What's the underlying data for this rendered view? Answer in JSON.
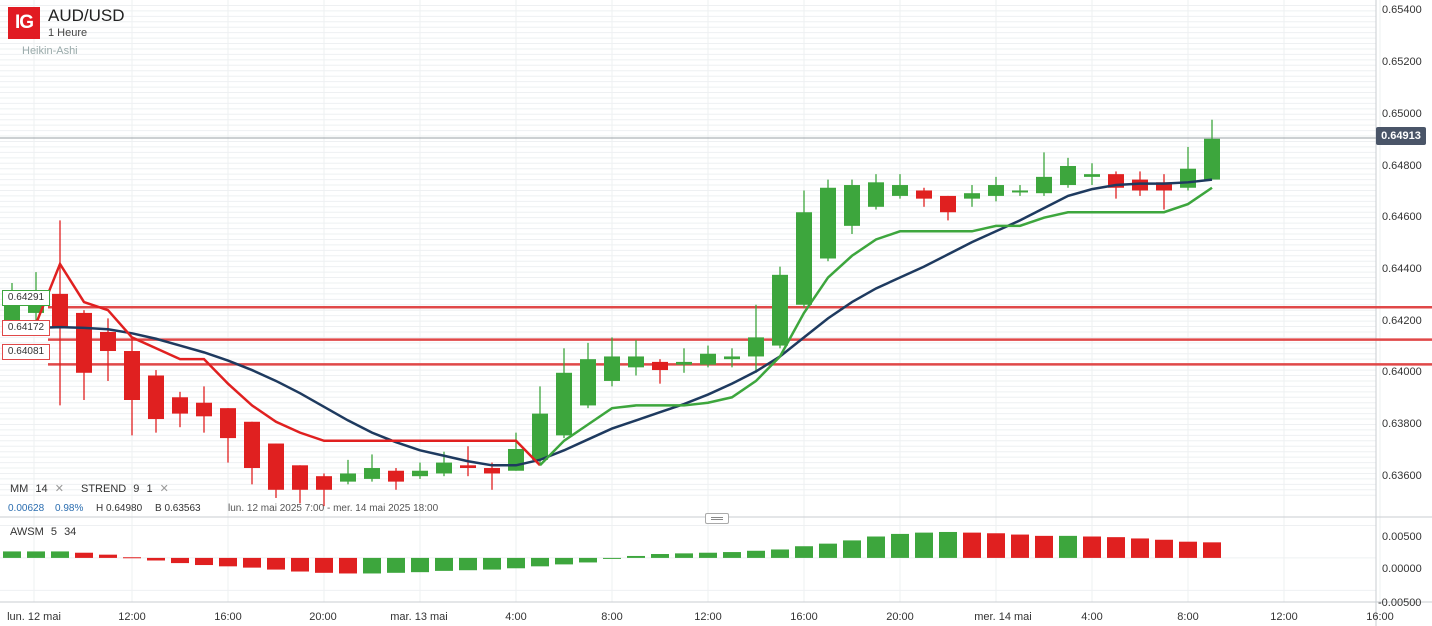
{
  "header": {
    "logo": "IG",
    "symbol": "AUD/USD",
    "timeframe": "1 Heure",
    "chart_type": "Heikin-Ashi"
  },
  "indicators": {
    "mm": {
      "name": "MM",
      "period": "14"
    },
    "strend": {
      "name": "STREND",
      "p1": "9",
      "p2": "1"
    },
    "awsm": {
      "name": "AWSM",
      "p1": "5",
      "p2": "34"
    }
  },
  "stats": {
    "change": "0.00628",
    "change_pct": "0.98%",
    "high": "H 0.64980",
    "low": "B 0.63563",
    "range": "lun. 12 mai 2025 7:00 - mer. 14 mai 2025 18:00"
  },
  "current_price": "0.64913",
  "levels": [
    "0.64291",
    "0.64172",
    "0.64081"
  ],
  "price_axis": [
    "0.65400",
    "0.65200",
    "0.65000",
    "0.64800",
    "0.64600",
    "0.64400",
    "0.64200",
    "0.64000",
    "0.63800",
    "0.63600"
  ],
  "awsm_axis": [
    "0.00500",
    "0.00000",
    "-0.00500"
  ],
  "time_axis": [
    "lun. 12 mai",
    "12:00",
    "16:00",
    "20:00",
    "mar. 13 mai",
    "4:00",
    "8:00",
    "12:00",
    "16:00",
    "20:00",
    "mer. 14 mai",
    "4:00",
    "8:00",
    "12:00",
    "16:00"
  ],
  "colors": {
    "up": "#3da63d",
    "down": "#e02020",
    "ma": "#1e3a5f",
    "level": "#e04848",
    "strend_up": "#3da63d",
    "strend_down": "#e02020"
  },
  "chart_data": {
    "type": "candlestick",
    "title": "AUD/USD",
    "price_ylim": [
      0.6352,
      0.6542
    ],
    "candles": [
      [
        0.6422,
        0.6433,
        0.6438,
        0.6419
      ],
      [
        0.6427,
        0.6434,
        0.6442,
        0.6424
      ],
      [
        0.6434,
        0.6422,
        0.6461,
        0.6393
      ],
      [
        0.6427,
        0.6405,
        0.6428,
        0.6395
      ],
      [
        0.642,
        0.6413,
        0.6425,
        0.6402
      ],
      [
        0.6413,
        0.6395,
        0.6418,
        0.6382
      ],
      [
        0.6404,
        0.6388,
        0.6406,
        0.6383
      ],
      [
        0.6396,
        0.639,
        0.6398,
        0.6385
      ],
      [
        0.6394,
        0.6389,
        0.64,
        0.6383
      ],
      [
        0.6392,
        0.6381,
        0.6392,
        0.6372
      ],
      [
        0.6387,
        0.637,
        0.6387,
        0.6364
      ],
      [
        0.6379,
        0.6362,
        0.6379,
        0.6359
      ],
      [
        0.6371,
        0.6362,
        0.6371,
        0.6357
      ],
      [
        0.6367,
        0.6362,
        0.6368,
        0.6356
      ],
      [
        0.6365,
        0.6368,
        0.6373,
        0.6364
      ],
      [
        0.6366,
        0.637,
        0.6375,
        0.6365
      ],
      [
        0.6369,
        0.6365,
        0.637,
        0.6362
      ],
      [
        0.6367,
        0.6369,
        0.6372,
        0.6366
      ],
      [
        0.6368,
        0.6372,
        0.6376,
        0.6367
      ],
      [
        0.6371,
        0.637,
        0.6378,
        0.6367
      ],
      [
        0.637,
        0.6368,
        0.6372,
        0.6362
      ],
      [
        0.6369,
        0.6377,
        0.6383,
        0.6369
      ],
      [
        0.6373,
        0.639,
        0.64,
        0.6371
      ],
      [
        0.6382,
        0.6405,
        0.6414,
        0.6381
      ],
      [
        0.6393,
        0.641,
        0.6416,
        0.6392
      ],
      [
        0.6402,
        0.6411,
        0.6418,
        0.64
      ],
      [
        0.6407,
        0.6411,
        0.6417,
        0.6404
      ],
      [
        0.6409,
        0.6406,
        0.641,
        0.6401
      ],
      [
        0.6408,
        0.6409,
        0.6414,
        0.6405
      ],
      [
        0.6408,
        0.6412,
        0.6415,
        0.6407
      ],
      [
        0.641,
        0.6411,
        0.6414,
        0.6407
      ],
      [
        0.6411,
        0.6418,
        0.643,
        0.6405
      ],
      [
        0.6415,
        0.6441,
        0.6444,
        0.6414
      ],
      [
        0.643,
        0.6464,
        0.6472,
        0.6429
      ],
      [
        0.6447,
        0.6473,
        0.6476,
        0.6446
      ],
      [
        0.6459,
        0.6474,
        0.6476,
        0.6456
      ],
      [
        0.6466,
        0.6475,
        0.6478,
        0.6465
      ],
      [
        0.647,
        0.6474,
        0.6478,
        0.6469
      ],
      [
        0.6472,
        0.6469,
        0.6473,
        0.6466
      ],
      [
        0.647,
        0.6464,
        0.647,
        0.6461
      ],
      [
        0.6469,
        0.6471,
        0.6474,
        0.6466
      ],
      [
        0.647,
        0.6474,
        0.6477,
        0.6468
      ],
      [
        0.6472,
        0.6472,
        0.6474,
        0.647
      ],
      [
        0.6471,
        0.6477,
        0.6486,
        0.647
      ],
      [
        0.6474,
        0.6481,
        0.6484,
        0.6473
      ],
      [
        0.6477,
        0.6478,
        0.6482,
        0.6474
      ],
      [
        0.6478,
        0.6473,
        0.6479,
        0.6469
      ],
      [
        0.6476,
        0.6472,
        0.6479,
        0.647
      ],
      [
        0.6475,
        0.6472,
        0.6478,
        0.6465
      ],
      [
        0.6473,
        0.648,
        0.6488,
        0.6472
      ],
      [
        0.6476,
        0.6491,
        0.6498,
        0.6476
      ]
    ],
    "ma14": [
      0.6421,
      0.64215,
      0.64218,
      0.64215,
      0.6421,
      0.64195,
      0.64175,
      0.6415,
      0.64125,
      0.64095,
      0.6406,
      0.6402,
      0.63975,
      0.63925,
      0.63875,
      0.6383,
      0.63795,
      0.63765,
      0.63745,
      0.63725,
      0.6371,
      0.6371,
      0.6373,
      0.63765,
      0.63805,
      0.63845,
      0.63875,
      0.63905,
      0.63935,
      0.6397,
      0.6401,
      0.64055,
      0.6411,
      0.6418,
      0.6425,
      0.6431,
      0.6436,
      0.644,
      0.6444,
      0.64485,
      0.6453,
      0.6457,
      0.6461,
      0.64655,
      0.647,
      0.64725,
      0.6474,
      0.64745,
      0.64745,
      0.6475,
      0.6476
    ],
    "strend": [
      0.642,
      0.6423,
      0.6445,
      0.6431,
      0.6428,
      0.6418,
      0.6414,
      0.641,
      0.641,
      0.6401,
      0.6393,
      0.6387,
      0.6383,
      0.638,
      0.638,
      0.638,
      0.638,
      0.638,
      0.638,
      0.638,
      0.638,
      0.638,
      0.6371,
      0.638,
      0.6386,
      0.6392,
      0.6393,
      0.6393,
      0.6393,
      0.6394,
      0.6396,
      0.6402,
      0.6411,
      0.6427,
      0.644,
      0.6448,
      0.6454,
      0.6457,
      0.6457,
      0.6457,
      0.6457,
      0.6459,
      0.6459,
      0.6462,
      0.6464,
      0.6464,
      0.6464,
      0.6464,
      0.6464,
      0.6467,
      0.6473
    ],
    "strend_switch_index": 22,
    "awsm_ylim": [
      -0.0068,
      0.006
    ],
    "awsm": [
      0.001,
      0.001,
      0.001,
      0.0008,
      0.0005,
      0.0001,
      -0.0004,
      -0.0008,
      -0.0011,
      -0.0013,
      -0.0015,
      -0.0018,
      -0.0021,
      -0.0023,
      -0.0024,
      -0.0024,
      -0.0023,
      -0.0022,
      -0.002,
      -0.0019,
      -0.0018,
      -0.0016,
      -0.0013,
      -0.001,
      -0.0007,
      -0.0001,
      0.0003,
      0.0006,
      0.0007,
      0.0008,
      0.0009,
      0.0011,
      0.0013,
      0.0018,
      0.0022,
      0.0027,
      0.0033,
      0.0037,
      0.0039,
      0.004,
      0.0039,
      0.0038,
      0.0036,
      0.0034,
      0.0034,
      0.0033,
      0.0032,
      0.003,
      0.0028,
      0.0025,
      0.0024
    ],
    "time_ticks_index": [
      0,
      5,
      9,
      13,
      17,
      21,
      25,
      29,
      33,
      37,
      41,
      45,
      49,
      53,
      57
    ]
  }
}
